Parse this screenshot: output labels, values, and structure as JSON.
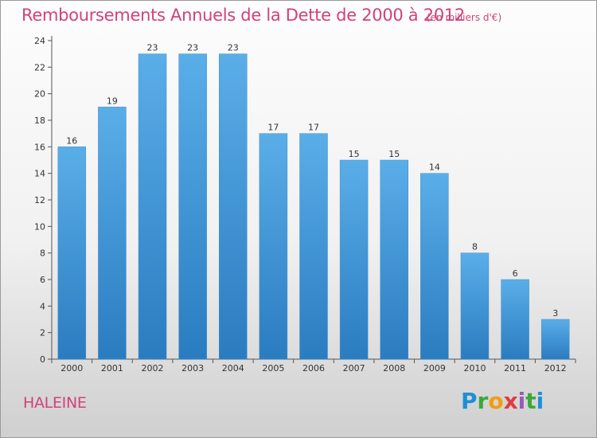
{
  "chart_data": {
    "type": "bar",
    "title": "Remboursements Annuels de la Dette de 2000 à 2012",
    "subtitle": "(en milliers d'€)",
    "categories": [
      "2000",
      "2001",
      "2002",
      "2003",
      "2004",
      "2005",
      "2006",
      "2007",
      "2008",
      "2009",
      "2010",
      "2011",
      "2012"
    ],
    "values": [
      16,
      19,
      23,
      23,
      23,
      17,
      17,
      15,
      15,
      14,
      8,
      6,
      3
    ],
    "ylim": [
      0,
      24
    ],
    "yticks": [
      0,
      2,
      4,
      6,
      8,
      10,
      12,
      14,
      16,
      18,
      20,
      22,
      24
    ],
    "grid": false,
    "bar_color_top": "#5aaee8",
    "bar_color_bottom": "#2a7cc0"
  },
  "commune": "HALEINE",
  "brand": "Proxiti"
}
